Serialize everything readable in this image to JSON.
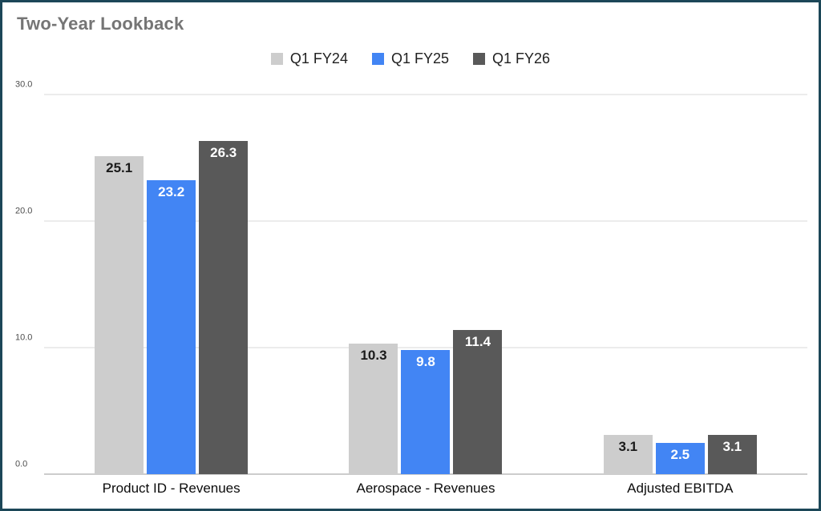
{
  "title": "Two-Year Lookback",
  "colors": {
    "frame_border": "#1c4758",
    "background": "#ffffff",
    "title_text": "#757575",
    "gridline": "#d9d9d9",
    "baseline": "#999999"
  },
  "chart_data": {
    "type": "bar",
    "title": "Two-Year Lookback",
    "categories": [
      "Product ID - Revenues",
      "Aerospace - Revenues",
      "Adjusted EBITDA"
    ],
    "series": [
      {
        "name": "Q1 FY24",
        "color": "#cdcdcd",
        "label_color": "#1a1a1a",
        "values": [
          25.1,
          10.3,
          3.1
        ]
      },
      {
        "name": "Q1 FY25",
        "color": "#4285f4",
        "label_color": "#ffffff",
        "values": [
          23.2,
          9.8,
          2.5
        ]
      },
      {
        "name": "Q1 FY26",
        "color": "#595959",
        "label_color": "#ffffff",
        "values": [
          26.3,
          11.4,
          3.1
        ]
      }
    ],
    "ylim": [
      0,
      30
    ],
    "y_ticks": [
      0,
      10,
      20,
      30
    ],
    "y_tick_labels": [
      "0.0",
      "10.0",
      "20.0",
      "30.0"
    ],
    "grid": true,
    "legend_position": "top",
    "xlabel": "",
    "ylabel": ""
  }
}
